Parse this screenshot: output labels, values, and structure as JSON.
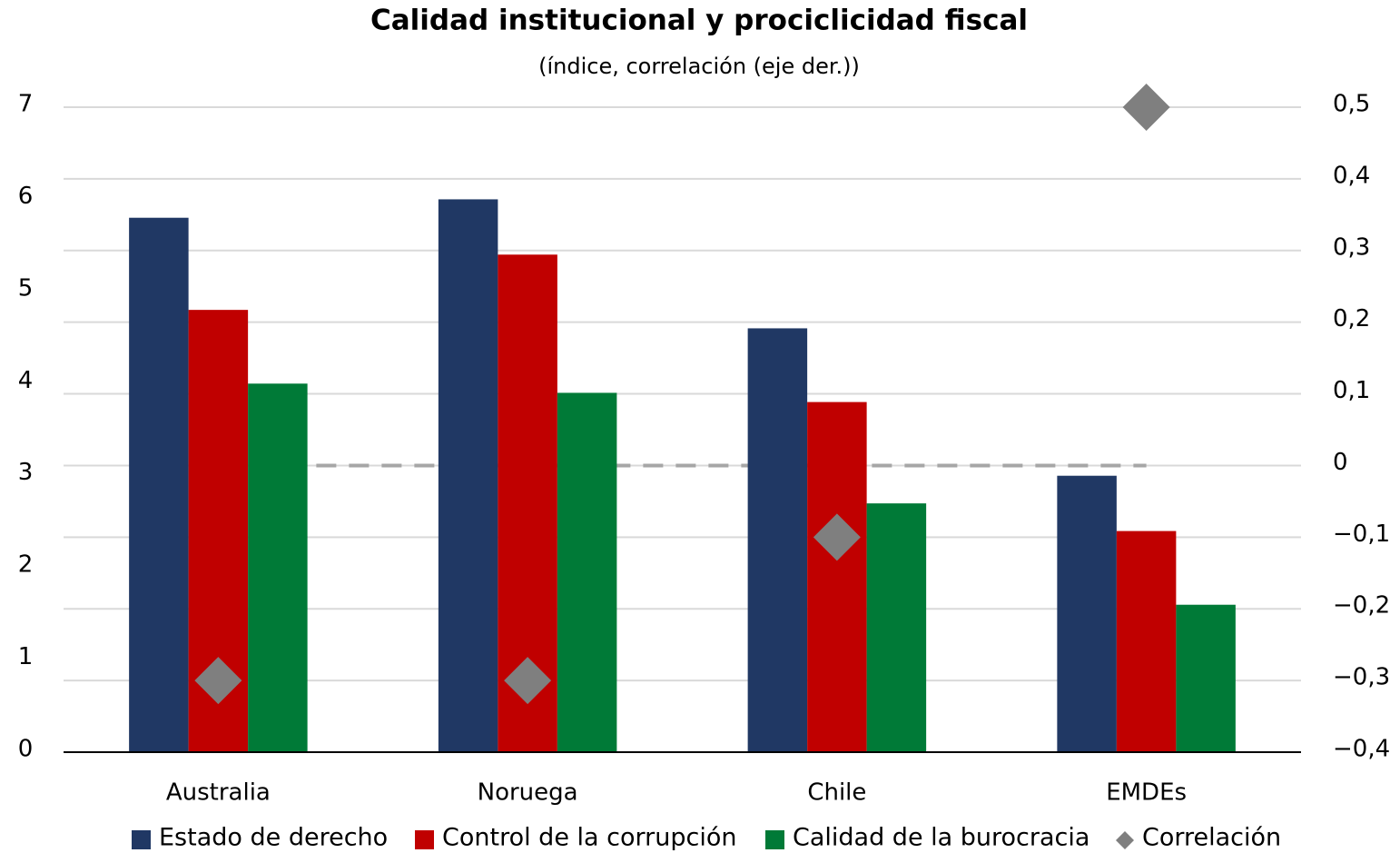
{
  "chart_data": {
    "type": "bar",
    "title": "Calidad institucional y prociclicidad fiscal",
    "subtitle": "(índice, correlación (eje der.))",
    "categories": [
      "Australia",
      "Noruega",
      "Chile",
      "EMDEs"
    ],
    "series": [
      {
        "name": "Estado de derecho",
        "color": "#203864",
        "values": [
          5.8,
          6.0,
          4.6,
          3.0
        ]
      },
      {
        "name": "Control de la corrupción",
        "color": "#c00000",
        "values": [
          4.8,
          5.4,
          3.8,
          2.4
        ]
      },
      {
        "name": "Calidad de la burocracia",
        "color": "#007a37",
        "values": [
          4.0,
          3.9,
          2.7,
          1.6
        ]
      },
      {
        "name": "Correlación",
        "color": "#7f7f7f",
        "type": "scatter",
        "marker": "diamond",
        "axis": "y2",
        "values": [
          -0.3,
          -0.3,
          -0.1,
          0.5
        ]
      }
    ],
    "ylim": [
      0,
      7
    ],
    "yticks": [
      0,
      1,
      2,
      3,
      4,
      5,
      6,
      7
    ],
    "y2lim": [
      -0.4,
      0.5
    ],
    "y2ticks": [
      {
        "value": -0.4,
        "label": "−0,4"
      },
      {
        "value": -0.3,
        "label": "−0,3"
      },
      {
        "value": -0.2,
        "label": "−0,2"
      },
      {
        "value": -0.1,
        "label": "−0,1"
      },
      0,
      {
        "value": 0.1,
        "label": "0,1"
      },
      {
        "value": 0.2,
        "label": "0,2"
      },
      {
        "value": 0.3,
        "label": "0,3"
      },
      {
        "value": 0.4,
        "label": "0,4"
      },
      {
        "value": 0.5,
        "label": "0,5"
      }
    ],
    "grid": true,
    "legend": "bottom"
  }
}
